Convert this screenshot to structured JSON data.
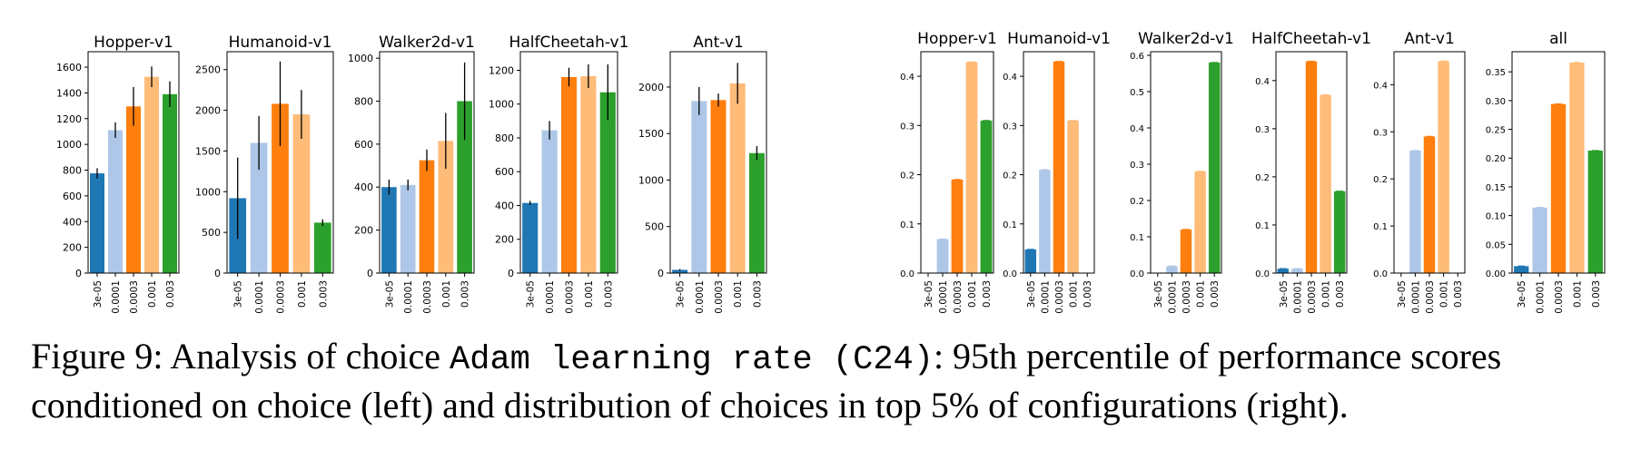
{
  "palette": [
    "#1f77b4",
    "#aec7e8",
    "#ff7f0e",
    "#ffbb78",
    "#2ca02c"
  ],
  "chart_data": [
    {
      "group": "left",
      "type": "bar",
      "title": "Hopper-v1",
      "categories": [
        "3e-05",
        "0.0001",
        "0.0003",
        "0.001",
        "0.003"
      ],
      "values": [
        775,
        1110,
        1295,
        1525,
        1390
      ],
      "err": [
        40,
        60,
        150,
        80,
        100
      ],
      "ylim": [
        0,
        1720
      ],
      "yticks": [
        0,
        200,
        400,
        600,
        800,
        1000,
        1200,
        1400,
        1600
      ]
    },
    {
      "group": "left",
      "type": "bar",
      "title": "Humanoid-v1",
      "categories": [
        "3e-05",
        "0.0001",
        "0.0003",
        "0.001",
        "0.003"
      ],
      "values": [
        920,
        1600,
        2080,
        1950,
        620
      ],
      "err": [
        500,
        330,
        520,
        300,
        40
      ],
      "ylim": [
        0,
        2720
      ],
      "yticks": [
        0,
        500,
        1000,
        1500,
        2000,
        2500
      ]
    },
    {
      "group": "left",
      "type": "bar",
      "title": "Walker2d-v1",
      "categories": [
        "3e-05",
        "0.0001",
        "0.0003",
        "0.001",
        "0.003"
      ],
      "values": [
        400,
        410,
        525,
        615,
        800
      ],
      "err": [
        35,
        25,
        50,
        130,
        180
      ],
      "ylim": [
        0,
        1030
      ],
      "yticks": [
        0,
        200,
        400,
        600,
        800,
        1000
      ]
    },
    {
      "group": "left",
      "type": "bar",
      "title": "HalfCheetah-v1",
      "categories": [
        "3e-05",
        "0.0001",
        "0.0003",
        "0.001",
        "0.003"
      ],
      "values": [
        415,
        845,
        1160,
        1165,
        1070
      ],
      "err": [
        12,
        55,
        55,
        70,
        165
      ],
      "ylim": [
        0,
        1310
      ],
      "yticks": [
        0,
        200,
        400,
        600,
        800,
        1000,
        1200
      ]
    },
    {
      "group": "left",
      "type": "bar",
      "title": "Ant-v1",
      "categories": [
        "3e-05",
        "0.0001",
        "0.0003",
        "0.001",
        "0.003"
      ],
      "values": [
        35,
        1850,
        1860,
        2040,
        1290
      ],
      "err": [
        8,
        150,
        70,
        220,
        75
      ],
      "ylim": [
        0,
        2380
      ],
      "yticks": [
        0,
        500,
        1000,
        1500,
        2000
      ]
    },
    {
      "group": "right",
      "type": "bar",
      "title": "Hopper-v1",
      "categories": [
        "3e-05",
        "0.0001",
        "0.0003",
        "0.001",
        "0.003"
      ],
      "values": [
        0,
        0.069,
        0.19,
        0.429,
        0.31
      ],
      "ylim": [
        0,
        0.45
      ],
      "yticks": [
        0.0,
        0.1,
        0.2,
        0.3,
        0.4
      ],
      "tick_labels": [
        "0.0",
        "0.1",
        "0.2",
        "0.3",
        "0.4"
      ]
    },
    {
      "group": "right",
      "type": "bar",
      "title": "Humanoid-v1",
      "categories": [
        "3e-05",
        "0.0001",
        "0.0003",
        "0.001",
        "0.003"
      ],
      "values": [
        0.048,
        0.21,
        0.43,
        0.31,
        0
      ],
      "ylim": [
        0,
        0.45
      ],
      "yticks": [
        0.0,
        0.1,
        0.2,
        0.3,
        0.4
      ],
      "tick_labels": [
        "0.0",
        "0.1",
        "0.2",
        "0.3",
        "0.4"
      ]
    },
    {
      "group": "right",
      "type": "bar",
      "title": "Walker2d-v1",
      "categories": [
        "3e-05",
        "0.0001",
        "0.0003",
        "0.001",
        "0.003"
      ],
      "values": [
        0,
        0.019,
        0.12,
        0.28,
        0.58
      ],
      "ylim": [
        0,
        0.61
      ],
      "yticks": [
        0.0,
        0.1,
        0.2,
        0.3,
        0.4,
        0.5,
        0.6
      ],
      "tick_labels": [
        "0.0",
        "0.1",
        "0.2",
        "0.3",
        "0.4",
        "0.5",
        "0.6"
      ]
    },
    {
      "group": "right",
      "type": "bar",
      "title": "HalfCheetah-v1",
      "categories": [
        "3e-05",
        "0.0001",
        "0.0003",
        "0.001",
        "0.003"
      ],
      "values": [
        0.009,
        0.009,
        0.44,
        0.37,
        0.17
      ],
      "ylim": [
        0,
        0.46
      ],
      "yticks": [
        0.0,
        0.1,
        0.2,
        0.3,
        0.4
      ],
      "tick_labels": [
        "0.0",
        "0.1",
        "0.2",
        "0.3",
        "0.4"
      ]
    },
    {
      "group": "right",
      "type": "bar",
      "title": "Ant-v1",
      "categories": [
        "3e-05",
        "0.0001",
        "0.0003",
        "0.001",
        "0.003"
      ],
      "values": [
        0,
        0.26,
        0.29,
        0.45,
        0
      ],
      "ylim": [
        0,
        0.47
      ],
      "yticks": [
        0.0,
        0.1,
        0.2,
        0.3,
        0.4
      ],
      "tick_labels": [
        "0.0",
        "0.1",
        "0.2",
        "0.3",
        "0.4"
      ]
    },
    {
      "group": "right",
      "type": "bar",
      "title": "all",
      "categories": [
        "3e-05",
        "0.0001",
        "0.0003",
        "0.001",
        "0.003"
      ],
      "values": [
        0.012,
        0.114,
        0.294,
        0.366,
        0.213
      ],
      "ylim": [
        0,
        0.385
      ],
      "yticks": [
        0.0,
        0.05,
        0.1,
        0.15,
        0.2,
        0.25,
        0.3,
        0.35
      ],
      "tick_labels": [
        "0.00",
        "0.05",
        "0.10",
        "0.15",
        "0.20",
        "0.25",
        "0.30",
        "0.35"
      ]
    }
  ],
  "caption": {
    "line1_a": "Figure 9: Analysis of choice ",
    "line1_code": "Adam learning rate (C24)",
    "line1_b": ": 95th percentile of performance scores",
    "line2": "conditioned on choice (left) and distribution of choices in top 5% of configurations (right)."
  }
}
